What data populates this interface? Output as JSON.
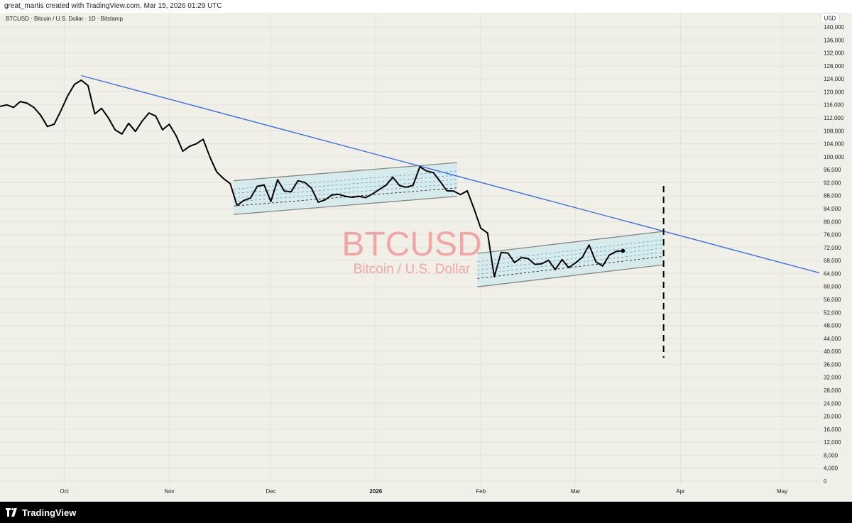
{
  "header": {
    "attribution": "great_martis created with TradingView.com, Mar 15, 2026 01:29 UTC"
  },
  "footer": {
    "brand": "TradingView"
  },
  "watermark": {
    "symbol": "BTCUSD",
    "name": "Bitcoin / U.S. Dollar"
  },
  "colors": {
    "price": "#000000",
    "trendline": "#3d6fe0",
    "channel_fill": "#cfe9ec",
    "channel_border": "#808a80",
    "watermark": "#f2a5a5",
    "background": "#f0f0e9"
  },
  "chart_data": {
    "type": "line",
    "title": "BTCUSD · Bitcoin / U.S. Dollar · 1D · Bitstamp",
    "currency_label": "USD",
    "xlabel": "",
    "ylabel": "",
    "ylim": [
      0,
      140000
    ],
    "y_ticks": [
      "140,000",
      "136,000",
      "132,000",
      "128,000",
      "124,000",
      "120,000",
      "116,000",
      "112,000",
      "108,000",
      "104,000",
      "100,000",
      "96,000",
      "92,000",
      "88,000",
      "84,000",
      "80,000",
      "76,000",
      "72,000",
      "68,000",
      "64,000",
      "60,000",
      "56,000",
      "52,000",
      "48,000",
      "44,000",
      "40,000",
      "36,000",
      "32,000",
      "28,000",
      "24,000",
      "20,000",
      "16,000",
      "12,000",
      "8,000",
      "4,000",
      "0"
    ],
    "x_ticks": [
      {
        "date": "2025-10-01",
        "label": "Oct",
        "bold": false
      },
      {
        "date": "2025-11-01",
        "label": "Nov",
        "bold": false
      },
      {
        "date": "2025-12-01",
        "label": "Dec",
        "bold": false
      },
      {
        "date": "2026-01-01",
        "label": "2026",
        "bold": true
      },
      {
        "date": "2026-02-01",
        "label": "Feb",
        "bold": false
      },
      {
        "date": "2026-03-01",
        "label": "Mar",
        "bold": false
      },
      {
        "date": "2026-04-01",
        "label": "Apr",
        "bold": false
      },
      {
        "date": "2026-05-01",
        "label": "May",
        "bold": false
      }
    ],
    "xlim": [
      "2025-09-12",
      "2026-05-12"
    ],
    "grid": true,
    "series": [
      {
        "values": [
          [
            "2025-09-12",
            115500
          ],
          [
            "2025-09-14",
            116000
          ],
          [
            "2025-09-16",
            115200
          ],
          [
            "2025-09-18",
            117000
          ],
          [
            "2025-09-20",
            116500
          ],
          [
            "2025-09-22",
            115200
          ],
          [
            "2025-09-24",
            112800
          ],
          [
            "2025-09-26",
            109300
          ],
          [
            "2025-09-28",
            110000
          ],
          [
            "2025-09-30",
            114200
          ],
          [
            "2025-10-02",
            118800
          ],
          [
            "2025-10-04",
            122300
          ],
          [
            "2025-10-06",
            123600
          ],
          [
            "2025-10-08",
            121900
          ],
          [
            "2025-10-10",
            113200
          ],
          [
            "2025-10-12",
            114900
          ],
          [
            "2025-10-14",
            112000
          ],
          [
            "2025-10-16",
            108300
          ],
          [
            "2025-10-18",
            107000
          ],
          [
            "2025-10-20",
            110300
          ],
          [
            "2025-10-22",
            107800
          ],
          [
            "2025-10-24",
            111000
          ],
          [
            "2025-10-26",
            113500
          ],
          [
            "2025-10-28",
            112500
          ],
          [
            "2025-10-30",
            108300
          ],
          [
            "2025-11-01",
            110000
          ],
          [
            "2025-11-03",
            106500
          ],
          [
            "2025-11-05",
            101700
          ],
          [
            "2025-11-07",
            103200
          ],
          [
            "2025-11-09",
            104000
          ],
          [
            "2025-11-11",
            105400
          ],
          [
            "2025-11-13",
            99900
          ],
          [
            "2025-11-15",
            95300
          ],
          [
            "2025-11-17",
            93300
          ],
          [
            "2025-11-19",
            91700
          ],
          [
            "2025-11-21",
            85000
          ],
          [
            "2025-11-23",
            86500
          ],
          [
            "2025-11-25",
            87300
          ],
          [
            "2025-11-27",
            90900
          ],
          [
            "2025-11-29",
            91300
          ],
          [
            "2025-12-01",
            86200
          ],
          [
            "2025-12-03",
            92900
          ],
          [
            "2025-12-05",
            89400
          ],
          [
            "2025-12-07",
            89200
          ],
          [
            "2025-12-09",
            92600
          ],
          [
            "2025-12-11",
            92100
          ],
          [
            "2025-12-13",
            90300
          ],
          [
            "2025-12-15",
            86000
          ],
          [
            "2025-12-17",
            86700
          ],
          [
            "2025-12-19",
            88200
          ],
          [
            "2025-12-21",
            88400
          ],
          [
            "2025-12-23",
            87800
          ],
          [
            "2025-12-25",
            87500
          ],
          [
            "2025-12-27",
            87800
          ],
          [
            "2025-12-29",
            87400
          ],
          [
            "2025-12-31",
            88500
          ],
          [
            "2026-01-02",
            89900
          ],
          [
            "2026-01-04",
            91200
          ],
          [
            "2026-01-06",
            93700
          ],
          [
            "2026-01-08",
            91100
          ],
          [
            "2026-01-10",
            90600
          ],
          [
            "2026-01-12",
            91200
          ],
          [
            "2026-01-14",
            96900
          ],
          [
            "2026-01-16",
            95600
          ],
          [
            "2026-01-18",
            95100
          ],
          [
            "2026-01-20",
            92400
          ],
          [
            "2026-01-22",
            89500
          ],
          [
            "2026-01-24",
            89400
          ],
          [
            "2026-01-26",
            88300
          ],
          [
            "2026-01-28",
            89500
          ],
          [
            "2026-01-30",
            84000
          ],
          [
            "2026-02-01",
            78000
          ],
          [
            "2026-02-03",
            76500
          ],
          [
            "2026-02-05",
            63000
          ],
          [
            "2026-02-07",
            70500
          ],
          [
            "2026-02-09",
            70300
          ],
          [
            "2026-02-11",
            67400
          ],
          [
            "2026-02-13",
            68900
          ],
          [
            "2026-02-15",
            68600
          ],
          [
            "2026-02-17",
            66800
          ],
          [
            "2026-02-19",
            67000
          ],
          [
            "2026-02-21",
            68100
          ],
          [
            "2026-02-23",
            65200
          ],
          [
            "2026-02-25",
            68300
          ],
          [
            "2026-02-27",
            65800
          ],
          [
            "2026-03-01",
            67300
          ],
          [
            "2026-03-03",
            69000
          ],
          [
            "2026-03-05",
            72800
          ],
          [
            "2026-03-07",
            67600
          ],
          [
            "2026-03-09",
            66300
          ],
          [
            "2026-03-11",
            69700
          ],
          [
            "2026-03-13",
            70800
          ],
          [
            "2026-03-15",
            71000
          ]
        ]
      }
    ],
    "annotations": {
      "trendline": {
        "from": [
          "2025-10-06",
          125000
        ],
        "to": [
          "2026-05-12",
          64200
        ]
      },
      "channels": [
        {
          "upper": [
            [
              "2025-11-20",
              92600
            ],
            [
              "2026-01-25",
              98200
            ]
          ],
          "lower": [
            [
              "2025-11-20",
              82200
            ],
            [
              "2026-01-25",
              87800
            ]
          ]
        },
        {
          "upper": [
            [
              "2026-01-31",
              70200
            ],
            [
              "2026-03-27",
              77000
            ]
          ],
          "lower": [
            [
              "2026-01-31",
              59900
            ],
            [
              "2026-03-27",
              66700
            ]
          ]
        }
      ],
      "vertical_marker": {
        "date": "2026-03-27",
        "from": 38000,
        "to": 91000
      }
    }
  }
}
